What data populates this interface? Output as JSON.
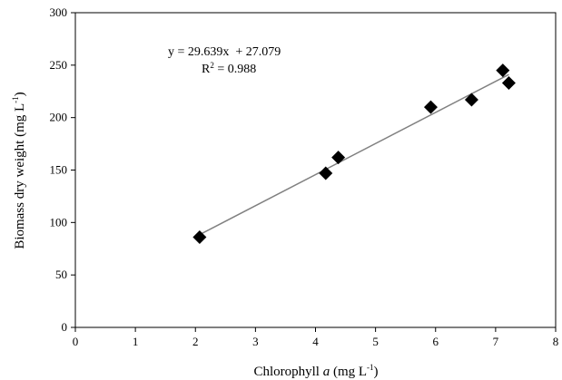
{
  "chart_data": {
    "type": "scatter",
    "title": "",
    "xlabel_parts": {
      "prefix": "Chlorophyll ",
      "italic": "a",
      "unit_open": " (mg L",
      "unit_exp": "-1",
      "unit_close": ")"
    },
    "ylabel_parts": {
      "prefix": "Biomass dry weight (mg L",
      "unit_exp": "-1",
      "unit_close": ")"
    },
    "xlim": [
      0,
      8
    ],
    "ylim": [
      0,
      300
    ],
    "x_ticks": [
      0,
      1,
      2,
      3,
      4,
      5,
      6,
      7,
      8
    ],
    "y_ticks": [
      0,
      50,
      100,
      150,
      200,
      250,
      300
    ],
    "marker": "diamond",
    "marker_color": "#000000",
    "grid": false,
    "series": [
      {
        "x": [
          2.07,
          4.17,
          4.38,
          5.92,
          6.6,
          7.12,
          7.22
        ],
        "y": [
          86,
          147,
          162,
          210,
          217,
          245,
          233
        ]
      }
    ],
    "trendline": {
      "slope": 29.639,
      "intercept": 27.079,
      "x_range": [
        2.07,
        7.22
      ],
      "color": "#808080"
    },
    "annotation": {
      "equation": "y = 29.639x  + 27.079",
      "r2_prefix": "R",
      "r2_sup": "2",
      "r2_value": " = 0.988"
    }
  }
}
